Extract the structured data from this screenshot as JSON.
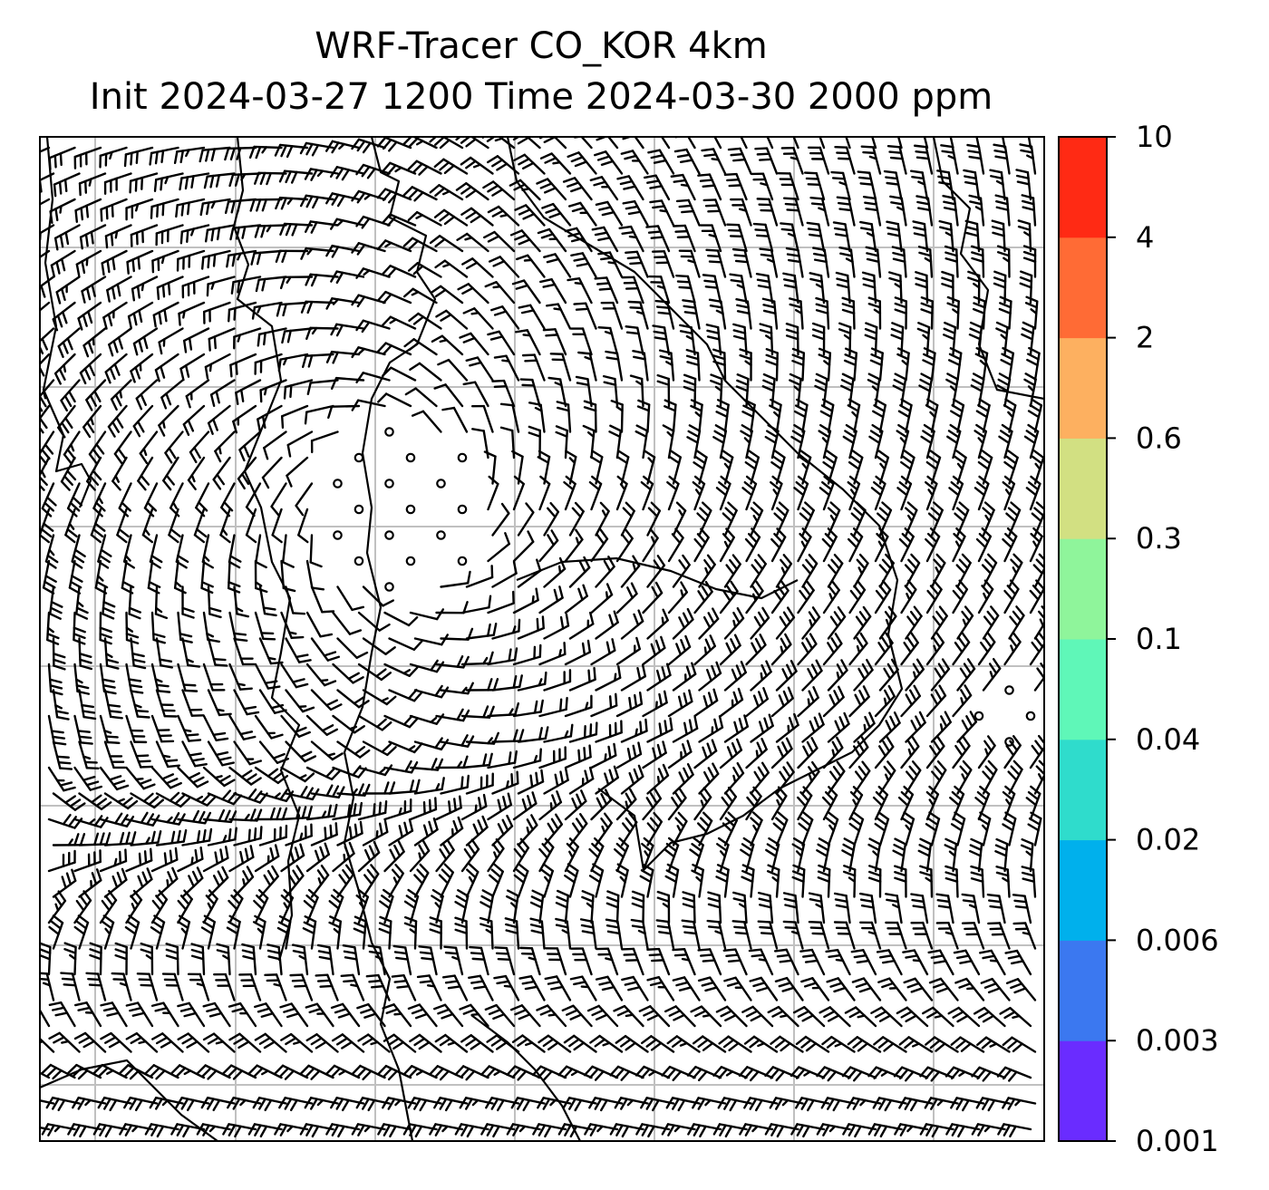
{
  "title": {
    "line1": "WRF-Tracer CO_KOR 4km",
    "line2": "Init 2024-03-27 1200 Time 2024-03-30 2000 ppm"
  },
  "colorbar": {
    "levels": [
      "0.001",
      "0.003",
      "0.006",
      "0.02",
      "0.04",
      "0.1",
      "0.3",
      "0.6",
      "2",
      "4",
      "10"
    ],
    "colors": [
      "#6a2cff",
      "#3b78f0",
      "#00b0ec",
      "#2fdccc",
      "#5ff7b8",
      "#8ff59b",
      "#d2e082",
      "#fdb060",
      "#ff6b35",
      "#ff2a14"
    ]
  },
  "map": {
    "gridlines": true,
    "grid_color": "#c0c0c0",
    "barb_color": "#000000",
    "coastline_color": "#000000"
  }
}
